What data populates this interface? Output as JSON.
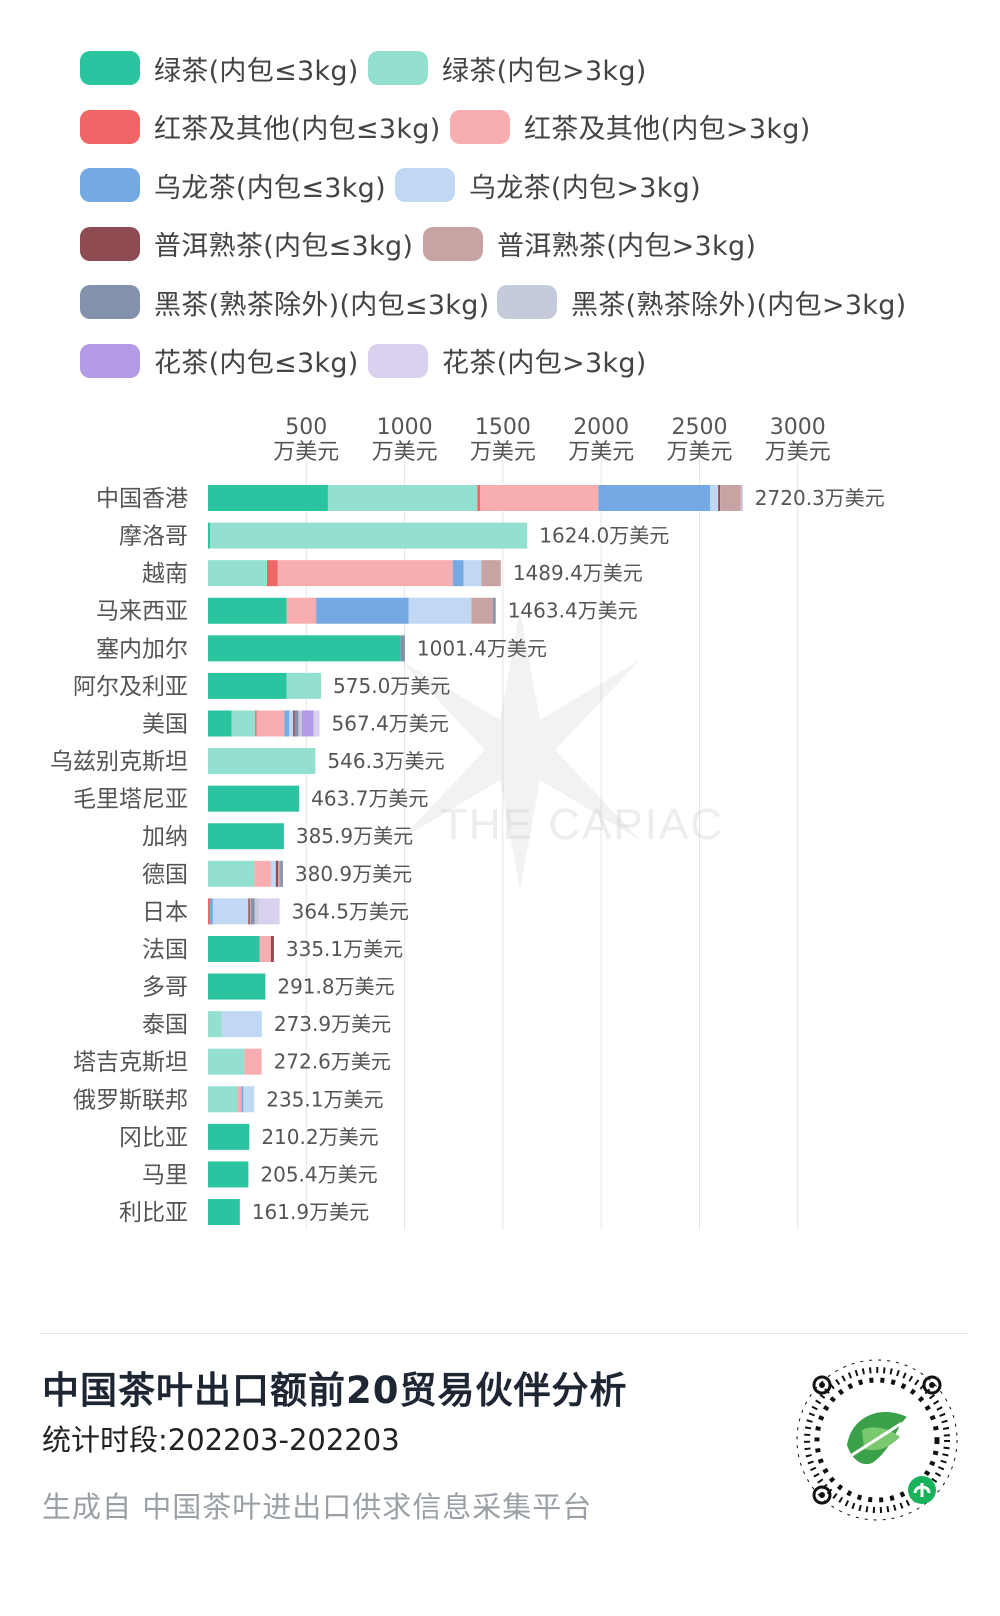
{
  "legend": [
    {
      "label": "绿茶(内包≤3kg)",
      "color": "#2ac4a0"
    },
    {
      "label": "绿茶(内包>3kg)",
      "color": "#93e0d0"
    },
    {
      "label": "红茶及其他(内包≤3kg)",
      "color": "#f06565"
    },
    {
      "label": "红茶及其他(内包>3kg)",
      "color": "#f8aeb1"
    },
    {
      "label": "乌龙茶(内包≤3kg)",
      "color": "#74a9e3"
    },
    {
      "label": "乌龙茶(内包>3kg)",
      "color": "#c0d8f3"
    },
    {
      "label": "普洱熟茶(内包≤3kg)",
      "color": "#8f4b52"
    },
    {
      "label": "普洱熟茶(内包>3kg)",
      "color": "#c9a3a4"
    },
    {
      "label": "黑茶(熟茶除外)(内包≤3kg)",
      "color": "#8391ad"
    },
    {
      "label": "黑茶(熟茶除外)(内包>3kg)",
      "color": "#c6cbdb"
    },
    {
      "label": "花茶(内包≤3kg)",
      "color": "#b39ae5"
    },
    {
      "label": "花茶(内包>3kg)",
      "color": "#dad1f1"
    }
  ],
  "chart_data": {
    "type": "bar",
    "orientation": "horizontal",
    "stacked": true,
    "categories": [
      "中国香港",
      "摩洛哥",
      "越南",
      "马来西亚",
      "塞内加尔",
      "阿尔及利亚",
      "美国",
      "乌兹别克斯坦",
      "毛里塔尼亚",
      "加纳",
      "德国",
      "日本",
      "法国",
      "多哥",
      "泰国",
      "塔吉克斯坦",
      "俄罗斯联邦",
      "冈比亚",
      "马里",
      "利比亚"
    ],
    "totals": [
      2720.3,
      1624.0,
      1489.4,
      1463.4,
      1001.4,
      575.0,
      567.4,
      546.3,
      463.7,
      385.9,
      380.9,
      364.5,
      335.1,
      291.8,
      273.9,
      272.6,
      235.1,
      210.2,
      205.4,
      161.9
    ],
    "value_labels": [
      "2720.3万美元",
      "1624.0万美元",
      "1489.4万美元",
      "1463.4万美元",
      "1001.4万美元",
      "575.0万美元",
      "567.4万美元",
      "546.3万美元",
      "463.7万美元",
      "385.9万美元",
      "380.9万美元",
      "364.5万美元",
      "335.1万美元",
      "291.8万美元",
      "273.9万美元",
      "272.6万美元",
      "235.1万美元",
      "210.2万美元",
      "205.4万美元",
      "161.9万美元"
    ],
    "series": [
      {
        "name": "绿茶(内包≤3kg)",
        "values": [
          610,
          10,
          0,
          400,
          980,
          400,
          120,
          0,
          463.7,
          385.9,
          0,
          0,
          262,
          291.8,
          0,
          0,
          0,
          210.2,
          205.4,
          161.9
        ]
      },
      {
        "name": "绿茶(内包>3kg)",
        "values": [
          760,
          1614,
          300,
          0,
          0,
          175,
          120,
          546.3,
          0,
          0,
          235,
          0,
          0,
          0,
          70,
          185,
          150,
          0,
          0,
          0
        ]
      },
      {
        "name": "红茶及其他(内包≤3kg)",
        "values": [
          15,
          0,
          55,
          0,
          0,
          0,
          8,
          0,
          0,
          0,
          0,
          10,
          0,
          0,
          0,
          0,
          0,
          0,
          0,
          0
        ]
      },
      {
        "name": "红茶及其他(内包>3kg)",
        "values": [
          600,
          0,
          890,
          150,
          0,
          0,
          140,
          0,
          0,
          0,
          85,
          0,
          58,
          0,
          0,
          87.6,
          20,
          0,
          0,
          0
        ]
      },
      {
        "name": "乌龙茶(内包≤3kg)",
        "values": [
          570,
          0,
          55,
          470,
          0,
          0,
          25,
          0,
          0,
          0,
          0,
          15,
          0,
          0,
          0,
          0,
          10,
          0,
          0,
          0
        ]
      },
      {
        "name": "乌龙茶(内包>3kg)",
        "values": [
          40,
          0,
          90,
          320,
          0,
          0,
          20,
          0,
          0,
          0,
          25,
          180,
          0,
          0,
          203.9,
          0,
          55.1,
          0,
          0,
          0
        ]
      },
      {
        "name": "普洱熟茶(内包≤3kg)",
        "values": [
          10,
          0,
          0,
          0,
          0,
          0,
          7,
          0,
          0,
          0,
          12,
          8,
          15.1,
          0,
          0,
          0,
          0,
          0,
          0,
          0
        ]
      },
      {
        "name": "普洱熟茶(内包>3kg)",
        "values": [
          105.3,
          0,
          99.4,
          110,
          0,
          0,
          0,
          0,
          0,
          0,
          10,
          5,
          0,
          0,
          0,
          0,
          0,
          0,
          0,
          0
        ]
      },
      {
        "name": "黑茶(熟茶除外)(内包≤3kg)",
        "values": [
          0,
          0,
          0,
          13.4,
          21.4,
          0,
          20,
          0,
          0,
          0,
          13.9,
          20,
          0,
          0,
          0,
          0,
          0,
          0,
          0,
          0
        ]
      },
      {
        "name": "黑茶(熟茶除外)(内包>3kg)",
        "values": [
          10,
          0,
          0,
          0,
          0,
          0,
          17.4,
          0,
          0,
          0,
          0,
          21.5,
          0,
          0,
          0,
          0,
          0,
          0,
          0,
          0
        ]
      },
      {
        "name": "花茶(内包≤3kg)",
        "values": [
          0,
          0,
          0,
          0,
          0,
          0,
          60,
          0,
          0,
          0,
          0,
          0,
          0,
          0,
          0,
          0,
          0,
          0,
          0,
          0
        ]
      },
      {
        "name": "花茶(内包>3kg)",
        "values": [
          0,
          0,
          0,
          0,
          0,
          0,
          30,
          0,
          0,
          0,
          0,
          105,
          0,
          0,
          0,
          0,
          0,
          0,
          0,
          0
        ]
      }
    ],
    "x_ticks": [
      500,
      1000,
      1500,
      2000,
      2500,
      3000
    ],
    "x_tick_labels": [
      [
        "500",
        "万美元"
      ],
      [
        "1000",
        "万美元"
      ],
      [
        "1500",
        "万美元"
      ],
      [
        "2000",
        "万美元"
      ],
      [
        "2500",
        "万美元"
      ],
      [
        "3000",
        "万美元"
      ]
    ],
    "xlim": [
      0,
      3000
    ],
    "grid": "vertical",
    "legend_position": "top"
  },
  "watermark": {
    "text": "THE CAPIAC"
  },
  "footer": {
    "title": "中国茶叶出口额前20贸易伙伴分析",
    "period": "统计时段:202203-202203",
    "source": "生成自 中国茶叶进出口供求信息采集平台"
  }
}
